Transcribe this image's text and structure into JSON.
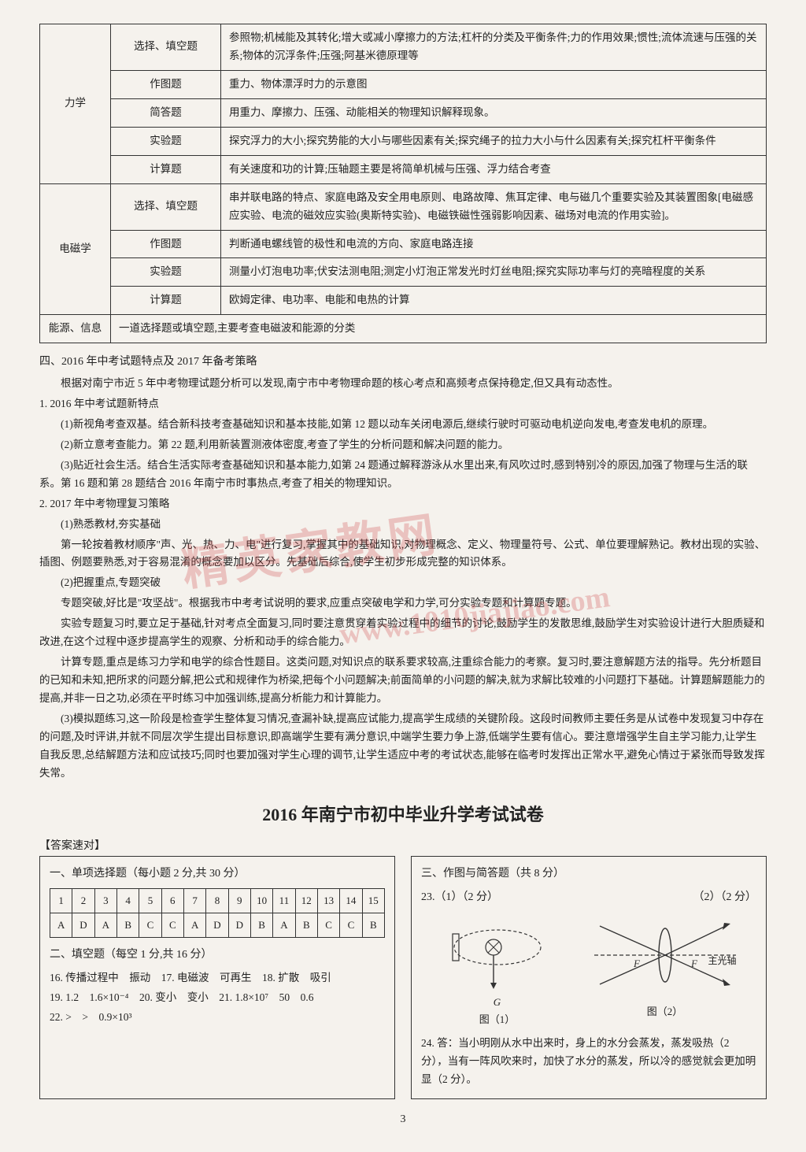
{
  "watermark": {
    "main": "精英家教网",
    "url": "www.1010jiajiao.com"
  },
  "table1": {
    "rows": [
      {
        "cat": "力学",
        "catRowspan": 5,
        "type": "选择、填空题",
        "content": "参照物;机械能及其转化;增大或减小摩擦力的方法;杠杆的分类及平衡条件;力的作用效果;惯性;流体流速与压强的关系;物体的沉浮条件;压强;阿基米德原理等"
      },
      {
        "type": "作图题",
        "content": "重力、物体漂浮时力的示意图"
      },
      {
        "type": "简答题",
        "content": "用重力、摩擦力、压强、动能相关的物理知识解释现象。"
      },
      {
        "type": "实验题",
        "content": "探究浮力的大小;探究势能的大小与哪些因素有关;探究绳子的拉力大小与什么因素有关;探究杠杆平衡条件"
      },
      {
        "type": "计算题",
        "content": "有关速度和功的计算;压轴题主要是将简单机械与压强、浮力结合考查"
      },
      {
        "cat": "电磁学",
        "catRowspan": 4,
        "type": "选择、填空题",
        "content": "串并联电路的特点、家庭电路及安全用电原则、电路故障、焦耳定律、电与磁几个重要实验及其装置图象[电磁感应实验、电流的磁效应实验(奥斯特实验)、电磁铁磁性强弱影响因素、磁场对电流的作用实验]。"
      },
      {
        "type": "作图题",
        "content": "判断通电螺线管的极性和电流的方向、家庭电路连接"
      },
      {
        "type": "实验题",
        "content": "测量小灯泡电功率;伏安法测电阻;测定小灯泡正常发光时灯丝电阻;探究实际功率与灯的亮暗程度的关系"
      },
      {
        "type": "计算题",
        "content": "欧姆定律、电功率、电能和电热的计算"
      },
      {
        "cat": "能源、信息",
        "catColspan": 2,
        "content": "一道选择题或填空题,主要考查电磁波和能源的分类"
      }
    ]
  },
  "sectionTitle": "四、2016 年中考试题特点及 2017 年备考策略",
  "intro": "根据对南宁市近 5 年中考物理试题分析可以发现,南宁市中考物理命题的核心考点和高频考点保持稳定,但又具有动态性。",
  "s1": {
    "head": "1. 2016 年中考试题新特点",
    "p1": "(1)新视角考查双基。结合新科技考查基础知识和基本技能,如第 12 题以动车关闭电源后,继续行驶时可驱动电机逆向发电,考查发电机的原理。",
    "p2": "(2)新立意考查能力。第 22 题,利用新装置测液体密度,考查了学生的分析问题和解决问题的能力。",
    "p3": "(3)贴近社会生活。结合生活实际考查基础知识和基本能力,如第 24 题通过解释游泳从水里出来,有风吹过时,感到特别冷的原因,加强了物理与生活的联系。第 16 题和第 28 题结合 2016 年南宁市时事热点,考查了相关的物理知识。"
  },
  "s2": {
    "head": "2. 2017 年中考物理复习策略",
    "p1h": "(1)熟悉教材,夯实基础",
    "p1": "第一轮按着教材顺序\"声、光、热、力、电\"进行复习,掌握其中的基础知识,对物理概念、定义、物理量符号、公式、单位要理解熟记。教材出现的实验、插图、例题要熟悉,对于容易混淆的概念要加以区分。先基础后综合,使学生初步形成完整的知识体系。",
    "p2h": "(2)把握重点,专题突破",
    "p2a": "专题突破,好比是\"攻坚战\"。根据我市中考考试说明的要求,应重点突破电学和力学,可分实验专题和计算题专题。",
    "p2b": "实验专题复习时,要立足于基础,针对考点全面复习,同时要注意贯穿着实验过程中的细节的讨论,鼓励学生的发散思维,鼓励学生对实验设计进行大胆质疑和改进,在这个过程中逐步提高学生的观察、分析和动手的综合能力。",
    "p2c": "计算专题,重点是练习力学和电学的综合性题目。这类问题,对知识点的联系要求较高,注重综合能力的考察。复习时,要注意解题方法的指导。先分析题目的已知和未知,把所求的问题分解,把公式和规律作为桥梁,把每个小问题解决;前面简单的小问题的解决,就为求解比较难的小问题打下基础。计算题解题能力的提高,并非一日之功,必须在平时练习中加强训练,提高分析能力和计算能力。",
    "p3": "(3)模拟题练习,这一阶段是检查学生整体复习情况,查漏补缺,提高应试能力,提高学生成绩的关键阶段。这段时间教师主要任务是从试卷中发现复习中存在的问题,及时评讲,并就不同层次学生提出目标意识,即高端学生要有满分意识,中端学生要力争上游,低端学生要有信心。要注意增强学生自主学习能力,让学生自我反思,总结解题方法和应试技巧;同时也要加强对学生心理的调节,让学生适应中考的考试状态,能够在临考时发挥出正常水平,避免心情过于紧张而导致发挥失常。"
  },
  "examTitle": "2016 年南宁市初中毕业升学考试试卷",
  "answerKey": "【答案速对】",
  "mcq": {
    "title": "一、单项选择题（每小题 2 分,共 30 分）",
    "nums": [
      "1",
      "2",
      "3",
      "4",
      "5",
      "6",
      "7",
      "8",
      "9",
      "10",
      "11",
      "12",
      "13",
      "14",
      "15"
    ],
    "ans": [
      "A",
      "D",
      "A",
      "B",
      "C",
      "C",
      "A",
      "D",
      "D",
      "B",
      "A",
      "B",
      "C",
      "C",
      "B"
    ]
  },
  "fill": {
    "title": "二、填空题（每空 1 分,共 16 分）",
    "l1": "16. 传播过程中　振动　17. 电磁波　可再生　18. 扩散　吸引",
    "l2": "19. 1.2　1.6×10⁻⁴　20. 变小　变小　21. 1.8×10⁷　50　0.6",
    "l3": "22. >　>　0.9×10³"
  },
  "right": {
    "title": "三、作图与简答题（共 8 分）",
    "q23a": "23.（1）（2 分）",
    "q23b": "（2）（2 分）",
    "fig1Label": "图（1）",
    "fig2Label": "图（2）",
    "fig1G": "G",
    "fig2Axis": "主光轴",
    "fig2F": "F",
    "q24": "24. 答：当小明刚从水中出来时，身上的水分会蒸发，蒸发吸热（2 分），当有一阵风吹来时，加快了水分的蒸发，所以冷的感觉就会更加明显（2 分）。"
  },
  "pageNum": "3"
}
